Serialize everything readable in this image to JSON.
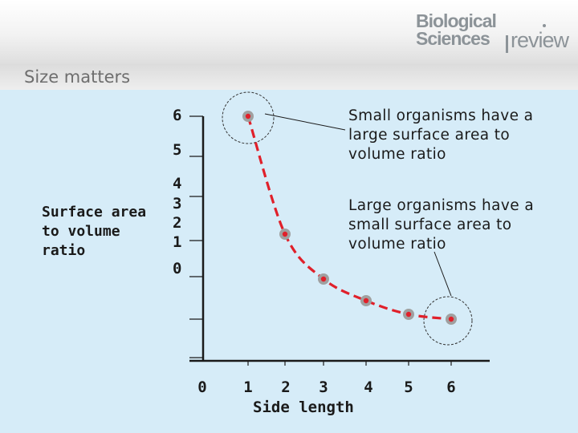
{
  "header": {
    "logo_line1": "Biological",
    "logo_line2": "Sciences",
    "logo_word": "review"
  },
  "page_title": "Size matters",
  "colors": {
    "background": "#d6ecf8",
    "curve": "#e0202a",
    "marker_outer": "#a0a0a0",
    "axis": "#1a1a1a"
  },
  "chart_data": {
    "type": "line",
    "xlabel": "Side length",
    "ylabel": "Surface area\nto volume\nratio",
    "x_ticks": [
      "0",
      "1",
      "2",
      "3",
      "4",
      "5",
      "6"
    ],
    "y_tick_labels": [
      "6",
      "5",
      "4",
      "3",
      "2",
      "1",
      "0"
    ],
    "series": [
      {
        "values": [
          {
            "x": 1,
            "y": 6
          },
          {
            "x": 2,
            "y": 3
          },
          {
            "x": 3,
            "y": 2
          },
          {
            "x": 4,
            "y": 1.5
          },
          {
            "x": 5,
            "y": 1.2
          },
          {
            "x": 6,
            "y": 1
          }
        ],
        "line_style": "dashed",
        "color": "#e0202a"
      }
    ],
    "annotations": [
      {
        "text": "Small organisms have a large surface area to volume ratio",
        "points_to": {
          "x": 1,
          "y": 6
        }
      },
      {
        "text": "Large organisms have a small surface area to volume ratio",
        "points_to": {
          "x": 6,
          "y": 1
        }
      }
    ],
    "grid": false,
    "legend": "none"
  }
}
